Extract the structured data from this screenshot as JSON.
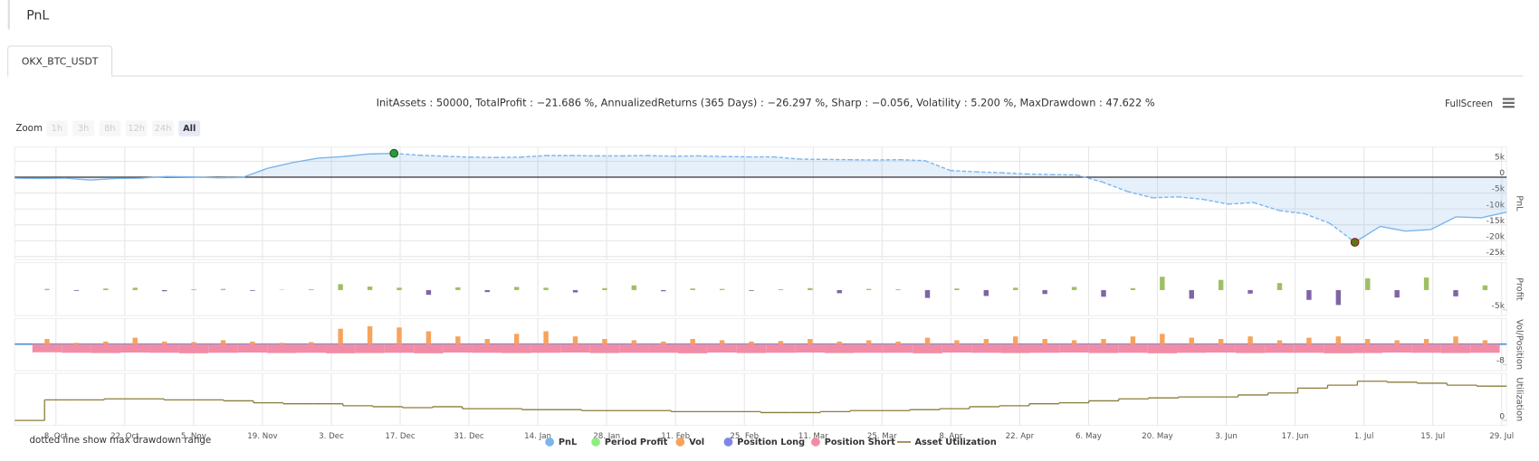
{
  "page": {
    "title": "PnL",
    "tab": "OKX_BTC_USDT",
    "summary": "InitAssets : 50000, TotalProfit : −21.686 %, AnnualizedReturns (365 Days) : −26.297 %, Sharp : −0.056, Volatility : 5.200 %, MaxDrawdown : 47.622 %",
    "zoom_label": "Zoom",
    "zoom_buttons": [
      "1h",
      "3h",
      "8h",
      "12h",
      "24h",
      "All"
    ],
    "zoom_selected": 5,
    "fullscreen": "FullScreen",
    "note": "dotted line show max drawdown range"
  },
  "x_axis": {
    "labels": [
      "8. Oct",
      "22. Oct",
      "5. Nov",
      "19. Nov",
      "3. Dec",
      "17. Dec",
      "31. Dec",
      "14. Jan",
      "28. Jan",
      "11. Feb",
      "25. Feb",
      "11. Mar",
      "25. Mar",
      "8. Apr",
      "22. Apr",
      "6. May",
      "20. May",
      "3. Jun",
      "17. Jun",
      "1. Jul",
      "15. Jul",
      "29. Jul"
    ]
  },
  "chart_data": [
    {
      "type": "line",
      "axis_title": "PnL",
      "ylim": [
        -26000,
        9500
      ],
      "grid": true,
      "drawdown_range": [
        15,
        53
      ],
      "yticks": [
        {
          "value": 5000,
          "label": "5k"
        },
        0,
        {
          "value": -5000,
          "label": "-5k"
        },
        {
          "value": -10000,
          "label": "-10k"
        },
        {
          "value": -15000,
          "label": "-15k"
        },
        {
          "value": -20000,
          "label": "-20k"
        },
        {
          "value": -25000,
          "label": "-25k"
        }
      ],
      "series": [
        {
          "name": "PnL",
          "color": "#7cb5ec",
          "values": [
            -300,
            -400,
            -300,
            -900,
            -400,
            -300,
            200,
            100,
            -200,
            -100,
            2800,
            4600,
            6000,
            6500,
            7300,
            7500,
            6900,
            6600,
            6300,
            6200,
            6300,
            6800,
            6800,
            6700,
            6700,
            6800,
            6600,
            6700,
            6500,
            6400,
            6400,
            5700,
            5600,
            5500,
            5400,
            5500,
            5200,
            2100,
            1700,
            1400,
            1000,
            800,
            700,
            -1500,
            -4500,
            -6500,
            -6200,
            -7000,
            -8500,
            -8000,
            -10500,
            -11500,
            -14500,
            -20500,
            -15500,
            -17000,
            -16500,
            -12500,
            -12800,
            -11000
          ]
        }
      ]
    },
    {
      "type": "bar",
      "axis_title": "Profit",
      "ylim": [
        -6500,
        7000
      ],
      "grid": false,
      "yticks": [
        {
          "value": -5000,
          "label": "-5k"
        }
      ],
      "positive_color": "#9dc063",
      "negative_color": "#7f65a6",
      "series": [
        {
          "name": "Period Profit",
          "color": "#90ed7d",
          "values": [
            300,
            -200,
            400,
            600,
            -300,
            200,
            300,
            -200,
            100,
            200,
            1500,
            900,
            600,
            -1200,
            700,
            -500,
            800,
            600,
            -600,
            500,
            1200,
            -300,
            400,
            300,
            -200,
            200,
            500,
            -800,
            300,
            200,
            -2000,
            400,
            -1500,
            600,
            -1000,
            800,
            -1700,
            500,
            3400,
            -2200,
            2600,
            -900,
            1800,
            -2500,
            -3800,
            3000,
            -1900,
            3200,
            -1600,
            1200
          ]
        }
      ]
    },
    {
      "type": "bar",
      "axis_title": "Vol/Position",
      "ylim": [
        -10.3,
        10
      ],
      "grid": false,
      "yticks": [
        -8
      ],
      "series": [
        {
          "name": "Vol",
          "color": "#f7a35c",
          "values": [
            2,
            0.5,
            1,
            2.5,
            1,
            0.8,
            1.5,
            1,
            0.5,
            0.8,
            6,
            7,
            6.5,
            5,
            3,
            2,
            4,
            5,
            3,
            2,
            1.5,
            1,
            2,
            1.5,
            1,
            1.2,
            2,
            1,
            1.5,
            1,
            2.5,
            1.5,
            2,
            3,
            2,
            1.5,
            2,
            3,
            4,
            2.5,
            2,
            3,
            1.5,
            2.5,
            3,
            2,
            1.5,
            2,
            3,
            1.5
          ]
        },
        {
          "name": "Position Long",
          "color": "#8085e9",
          "values": [
            0,
            0,
            0,
            0,
            0,
            0,
            0,
            0,
            0,
            0,
            0,
            0,
            0,
            0,
            0,
            0,
            0,
            0,
            0,
            0,
            0,
            0,
            0,
            0,
            0,
            0,
            0,
            0,
            0,
            0,
            0,
            0,
            0,
            0,
            0,
            0,
            0,
            0,
            0,
            0,
            0,
            0,
            0,
            0,
            0,
            0,
            0,
            0,
            0,
            0
          ]
        },
        {
          "name": "Position Short",
          "color": "#f28ca6",
          "values": [
            -3.2,
            -3.4,
            -3.5,
            -3.3,
            -3.4,
            -3.6,
            -3.4,
            -3.3,
            -3.5,
            -3.4,
            -3.6,
            -3.5,
            -3.4,
            -3.6,
            -3.3,
            -3.4,
            -3.5,
            -3.4,
            -3.3,
            -3.5,
            -3.4,
            -3.4,
            -3.6,
            -3.3,
            -3.5,
            -3.4,
            -3.3,
            -3.5,
            -3.4,
            -3.4,
            -3.6,
            -3.3,
            -3.4,
            -3.5,
            -3.4,
            -3.3,
            -3.5,
            -3.4,
            -3.6,
            -3.4,
            -3.3,
            -3.5,
            -3.4,
            -3.4,
            -3.6,
            -3.5,
            -3.3,
            -3.4,
            -3.5,
            -3.4
          ]
        }
      ]
    },
    {
      "type": "step",
      "axis_title": "Utilization",
      "ylim": [
        -5,
        48
      ],
      "grid": false,
      "yticks": [
        0
      ],
      "series": [
        {
          "name": "Asset Utilization",
          "color": "#8b7d3a",
          "values": [
            0,
            21,
            21,
            22,
            22,
            21,
            21,
            20,
            18,
            17,
            17,
            15,
            14,
            13,
            14,
            12,
            12,
            11,
            11,
            10,
            10,
            10,
            9,
            9,
            9,
            8,
            8,
            9,
            10,
            10,
            11,
            12,
            14,
            15,
            17,
            18,
            20,
            22,
            23,
            24,
            24,
            26,
            28,
            33,
            36,
            40,
            39,
            38,
            36,
            35
          ]
        }
      ]
    }
  ]
}
